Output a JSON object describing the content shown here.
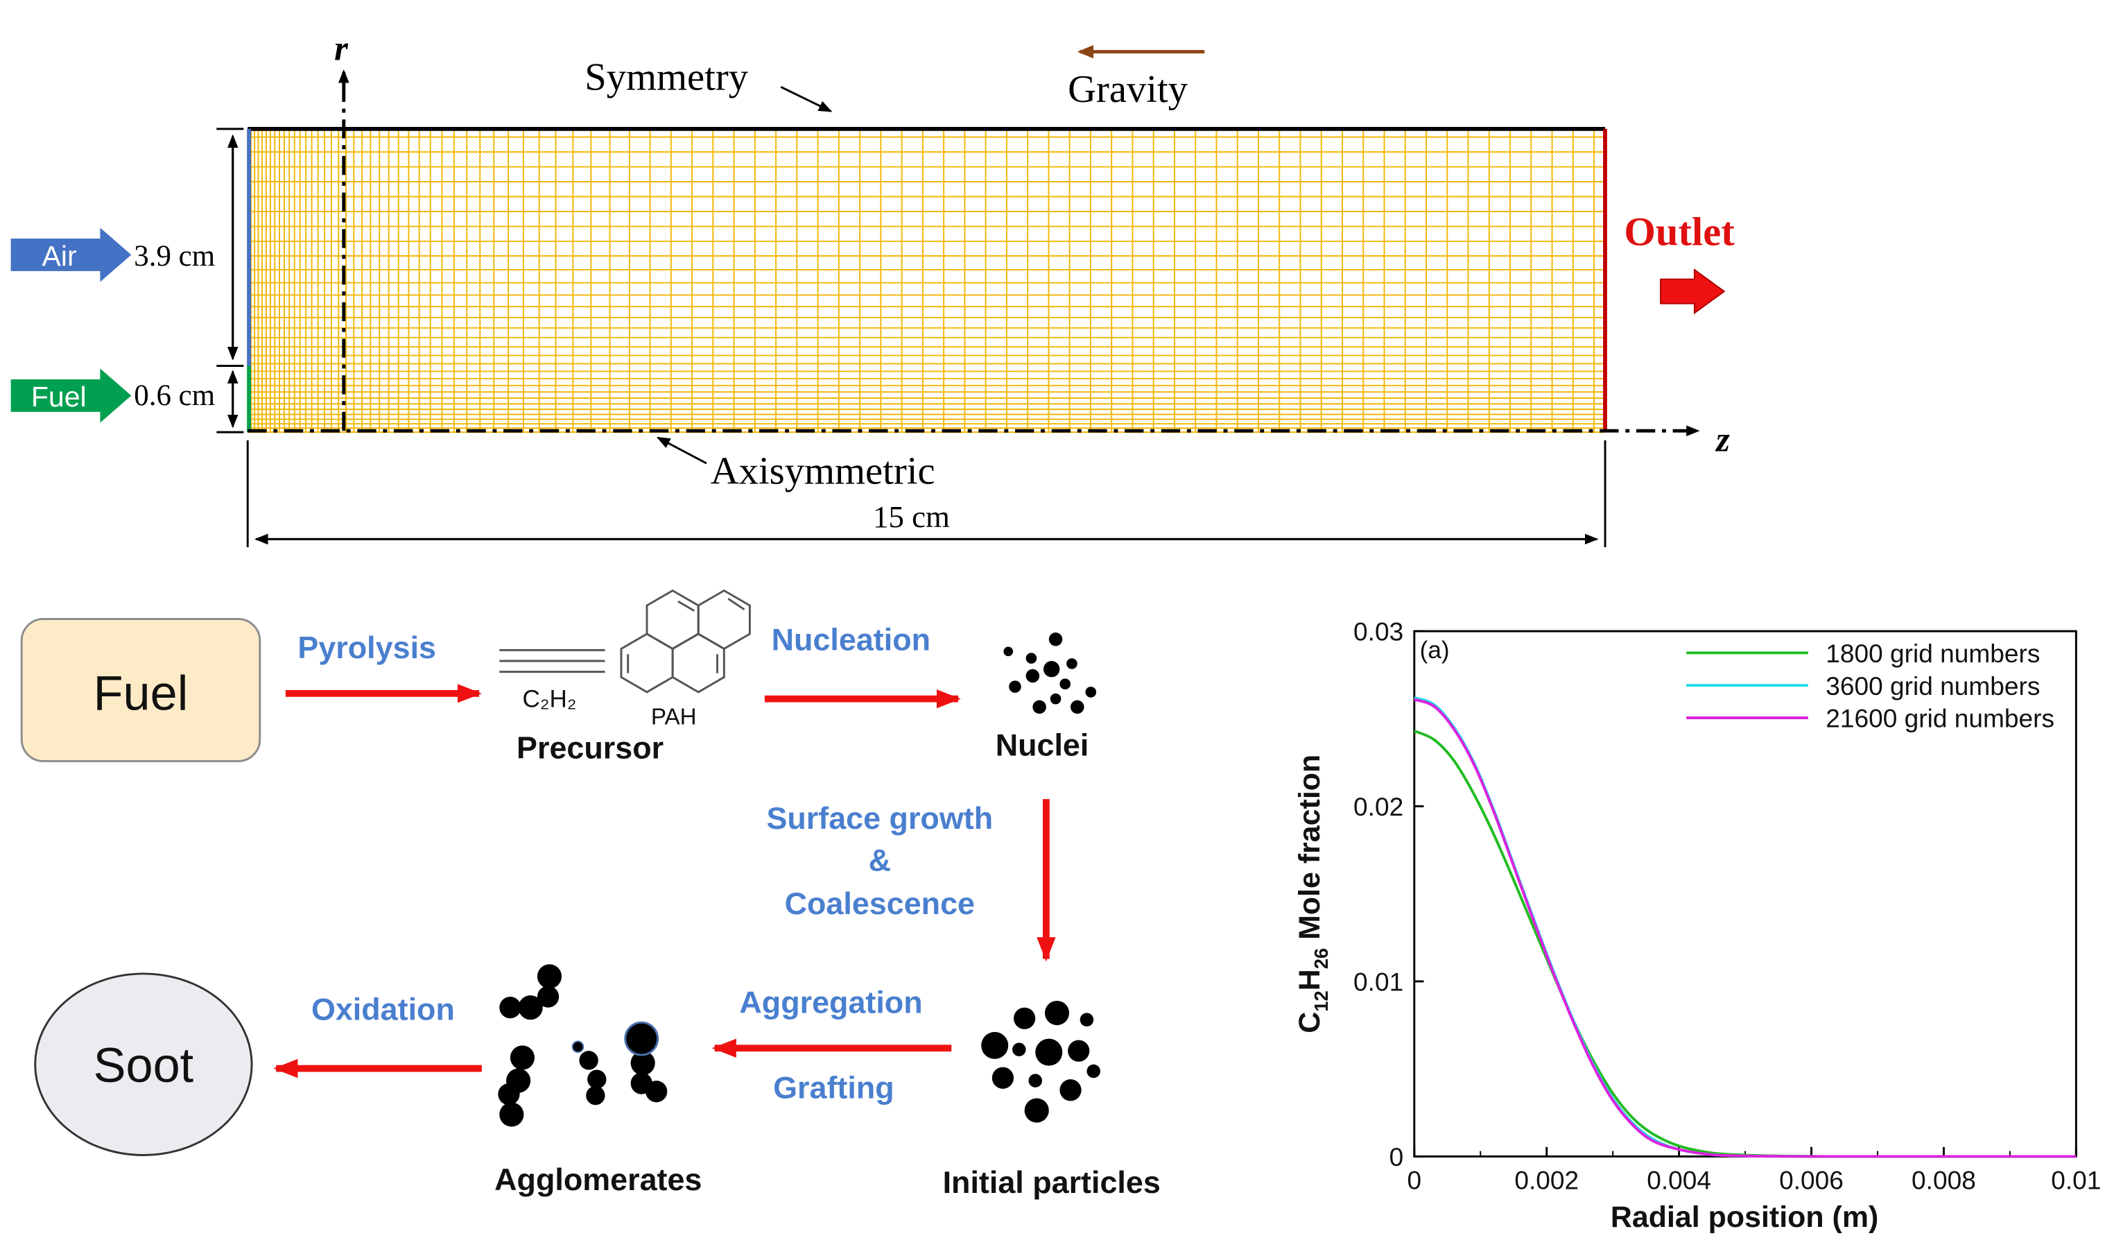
{
  "domain_view": {
    "labels": {
      "r_axis": "r",
      "z_axis": "z",
      "symmetry": "Symmetry",
      "gravity": "Gravity",
      "outlet": "Outlet",
      "axisymmetric": "Axisymmetric",
      "air": "Air",
      "fuel": "Fuel",
      "height_air": "3.9 cm",
      "height_fuel": "0.6 cm",
      "length": "15 cm"
    },
    "colors": {
      "grid": "#f2b705",
      "outlet": "#c00000",
      "air_arrow": "#4472c4",
      "fuel_arrow": "#00a050",
      "gravity_arrow": "#8b4513"
    }
  },
  "flow": {
    "fuel_box": "Fuel",
    "soot_box": "Soot",
    "pyrolysis": "Pyrolysis",
    "c2h2": "C₂H₂",
    "pah": "PAH",
    "precursor": "Precursor",
    "nucleation": "Nucleation",
    "nuclei": "Nuclei",
    "surface_growth": "Surface growth",
    "amp": "&",
    "coalescence": "Coalescence",
    "initial_particles": "Initial particles",
    "aggregation": "Aggregation",
    "grafting": "Grafting",
    "agglomerates": "Agglomerates",
    "oxidation": "Oxidation"
  },
  "chart_data": {
    "type": "line",
    "annotation": "(a)",
    "xlabel": "Radial position (m)",
    "ylabel_prefix": "C",
    "ylabel_sub1": "12",
    "ylabel_mid": "H",
    "ylabel_sub2": "26",
    "ylabel_suffix": " Mole fraction",
    "xlim": [
      0,
      0.01
    ],
    "ylim": [
      0,
      0.03
    ],
    "xticks": [
      0,
      0.002,
      0.004,
      0.006,
      0.008,
      0.01
    ],
    "xtick_labels": [
      "0",
      "0.002",
      "0.004",
      "0.006",
      "0.008",
      "0.01"
    ],
    "yticks": [
      0,
      0.01,
      0.02,
      0.03
    ],
    "ytick_labels": [
      "0",
      "0.01",
      "0.02",
      "0.03"
    ],
    "legend_position": "top-right",
    "grid": false,
    "x": [
      0,
      0.0003,
      0.0006,
      0.0009,
      0.0012,
      0.0015,
      0.0018,
      0.0021,
      0.0024,
      0.0027,
      0.003,
      0.0033,
      0.0036,
      0.004,
      0.0045,
      0.005,
      0.0055,
      0.006,
      0.0066,
      0.01
    ],
    "series": [
      {
        "name": "1800 grid numbers",
        "color": "#22bb22",
        "values": [
          0.0243,
          0.0238,
          0.0226,
          0.0207,
          0.0184,
          0.0158,
          0.0131,
          0.0104,
          0.0078,
          0.0055,
          0.0036,
          0.0022,
          0.0013,
          0.0006,
          0.0002,
          8e-05,
          3e-05,
          1e-05,
          0,
          0
        ]
      },
      {
        "name": "3600 grid numbers",
        "color": "#22d8e8",
        "values": [
          0.0262,
          0.0258,
          0.0245,
          0.0225,
          0.0198,
          0.0167,
          0.0136,
          0.0106,
          0.0078,
          0.0053,
          0.0033,
          0.0019,
          0.001,
          0.0004,
          0.0001,
          3e-05,
          1e-05,
          0,
          0,
          0
        ]
      },
      {
        "name": "21600 grid numbers",
        "color": "#dd22dd",
        "values": [
          0.0261,
          0.0257,
          0.0244,
          0.0224,
          0.0197,
          0.0166,
          0.0135,
          0.0105,
          0.0077,
          0.0052,
          0.0032,
          0.0018,
          0.0009,
          0.0004,
          0.0001,
          3e-05,
          1e-05,
          0,
          0,
          0
        ]
      }
    ]
  }
}
